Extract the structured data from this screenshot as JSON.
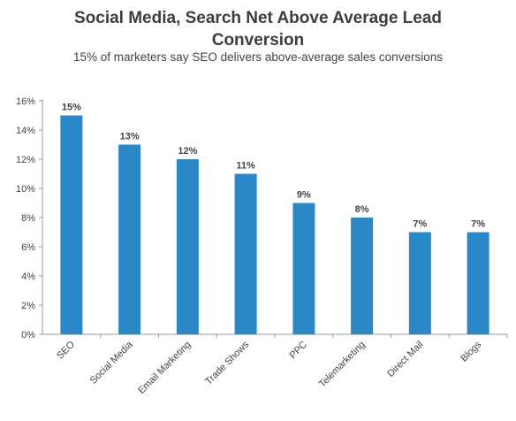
{
  "chart_data": {
    "type": "bar",
    "title_line1": "Social Media, Search Net Above Average Lead",
    "title_line2": "Conversion",
    "subtitle": "15% of marketers say SEO delivers above-average sales conversions",
    "categories": [
      "SEO",
      "Social Media",
      "Email Marketing",
      "Trade Shows",
      "PPC",
      "Telemarketing",
      "Direct Mail",
      "Blogs"
    ],
    "values": [
      15,
      13,
      12,
      11,
      9,
      8,
      7,
      7
    ],
    "data_labels": [
      "15%",
      "13%",
      "12%",
      "11%",
      "9%",
      "8%",
      "7%",
      "7%"
    ],
    "ylim": [
      0,
      16
    ],
    "yticks": [
      0,
      2,
      4,
      6,
      8,
      10,
      12,
      14,
      16
    ],
    "ytick_labels": [
      "0%",
      "2%",
      "4%",
      "6%",
      "8%",
      "10%",
      "12%",
      "14%",
      "16%"
    ],
    "grid": false,
    "bar_color": "#2b88c8",
    "axis_color": "#999999"
  }
}
